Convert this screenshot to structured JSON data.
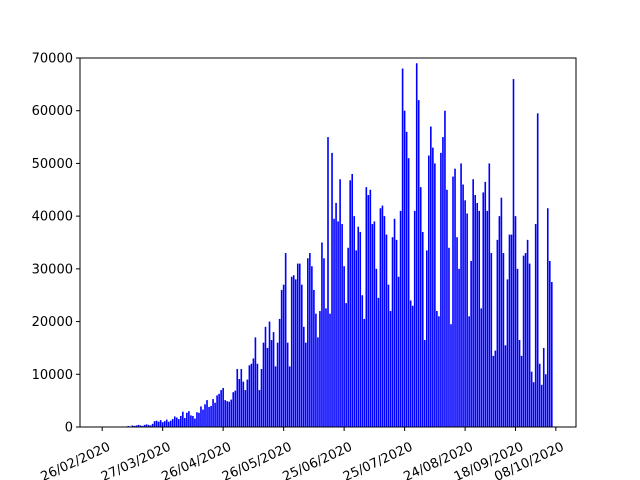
{
  "chart_data": {
    "type": "bar",
    "x": [
      "2020-03-01",
      "2020-03-02",
      "2020-03-03",
      "2020-03-04",
      "2020-03-05",
      "2020-03-06",
      "2020-03-07",
      "2020-03-08",
      "2020-03-09",
      "2020-03-10",
      "2020-03-11",
      "2020-03-12",
      "2020-03-13",
      "2020-03-14",
      "2020-03-15",
      "2020-03-16",
      "2020-03-17",
      "2020-03-18",
      "2020-03-19",
      "2020-03-20",
      "2020-03-21",
      "2020-03-22",
      "2020-03-23",
      "2020-03-24",
      "2020-03-25",
      "2020-03-26",
      "2020-03-27",
      "2020-03-28",
      "2020-03-29",
      "2020-03-30",
      "2020-03-31",
      "2020-04-01",
      "2020-04-02",
      "2020-04-03",
      "2020-04-04",
      "2020-04-05",
      "2020-04-06",
      "2020-04-07",
      "2020-04-08",
      "2020-04-09",
      "2020-04-10",
      "2020-04-11",
      "2020-04-12",
      "2020-04-13",
      "2020-04-14",
      "2020-04-15",
      "2020-04-16",
      "2020-04-17",
      "2020-04-18",
      "2020-04-19",
      "2020-04-20",
      "2020-04-21",
      "2020-04-22",
      "2020-04-23",
      "2020-04-24",
      "2020-04-25",
      "2020-04-26",
      "2020-04-27",
      "2020-04-28",
      "2020-04-29",
      "2020-04-30",
      "2020-05-01",
      "2020-05-02",
      "2020-05-03",
      "2020-05-04",
      "2020-05-05",
      "2020-05-06",
      "2020-05-07",
      "2020-05-08",
      "2020-05-09",
      "2020-05-10",
      "2020-05-11",
      "2020-05-12",
      "2020-05-13",
      "2020-05-14",
      "2020-05-15",
      "2020-05-16",
      "2020-05-17",
      "2020-05-18",
      "2020-05-19",
      "2020-05-20",
      "2020-05-21",
      "2020-05-22",
      "2020-05-23",
      "2020-05-24",
      "2020-05-25",
      "2020-05-26",
      "2020-05-27",
      "2020-05-28",
      "2020-05-29",
      "2020-05-30",
      "2020-05-31",
      "2020-06-01",
      "2020-06-02",
      "2020-06-03",
      "2020-06-04",
      "2020-06-05",
      "2020-06-06",
      "2020-06-07",
      "2020-06-08",
      "2020-06-09",
      "2020-06-10",
      "2020-06-11",
      "2020-06-12",
      "2020-06-13",
      "2020-06-14",
      "2020-06-15",
      "2020-06-16",
      "2020-06-17",
      "2020-06-18",
      "2020-06-19",
      "2020-06-20",
      "2020-06-21",
      "2020-06-22",
      "2020-06-23",
      "2020-06-24",
      "2020-06-25",
      "2020-06-26",
      "2020-06-27",
      "2020-06-28",
      "2020-06-29",
      "2020-06-30",
      "2020-07-01",
      "2020-07-02",
      "2020-07-03",
      "2020-07-04",
      "2020-07-05",
      "2020-07-06",
      "2020-07-07",
      "2020-07-08",
      "2020-07-09",
      "2020-07-10",
      "2020-07-11",
      "2020-07-12",
      "2020-07-13",
      "2020-07-14",
      "2020-07-15",
      "2020-07-16",
      "2020-07-17",
      "2020-07-18",
      "2020-07-19",
      "2020-07-20",
      "2020-07-21",
      "2020-07-22",
      "2020-07-23",
      "2020-07-24",
      "2020-07-25",
      "2020-07-26",
      "2020-07-27",
      "2020-07-28",
      "2020-07-29",
      "2020-07-30",
      "2020-07-31",
      "2020-08-01",
      "2020-08-02",
      "2020-08-03",
      "2020-08-04",
      "2020-08-05",
      "2020-08-06",
      "2020-08-07",
      "2020-08-08",
      "2020-08-09",
      "2020-08-10",
      "2020-08-11",
      "2020-08-12",
      "2020-08-13",
      "2020-08-14",
      "2020-08-15",
      "2020-08-16",
      "2020-08-17",
      "2020-08-18",
      "2020-08-19",
      "2020-08-20",
      "2020-08-21",
      "2020-08-22",
      "2020-08-23",
      "2020-08-24",
      "2020-08-25",
      "2020-08-26",
      "2020-08-27",
      "2020-08-28",
      "2020-08-29",
      "2020-08-30",
      "2020-08-31",
      "2020-09-01",
      "2020-09-02",
      "2020-09-03",
      "2020-09-04",
      "2020-09-05",
      "2020-09-06",
      "2020-09-07",
      "2020-09-08",
      "2020-09-09",
      "2020-09-10",
      "2020-09-11",
      "2020-09-12",
      "2020-09-13",
      "2020-09-14",
      "2020-09-15",
      "2020-09-16",
      "2020-09-17",
      "2020-09-18",
      "2020-09-19",
      "2020-09-20",
      "2020-09-21",
      "2020-09-22",
      "2020-09-23",
      "2020-09-24",
      "2020-09-25",
      "2020-09-26",
      "2020-09-27",
      "2020-09-28",
      "2020-09-29",
      "2020-09-30",
      "2020-10-01",
      "2020-10-02",
      "2020-10-03",
      "2020-10-04",
      "2020-10-05",
      "2020-10-06"
    ],
    "values": [
      0,
      0,
      0,
      0,
      0,
      0,
      0,
      0,
      100,
      200,
      100,
      300,
      200,
      300,
      400,
      300,
      200,
      400,
      500,
      400,
      300,
      600,
      1100,
      1200,
      1000,
      1300,
      900,
      1100,
      1400,
      1000,
      1200,
      1500,
      2000,
      1800,
      1500,
      2100,
      2900,
      1700,
      2700,
      3000,
      2200,
      2100,
      1600,
      2800,
      2700,
      3900,
      3300,
      4300,
      5100,
      3800,
      4000,
      5300,
      4600,
      6000,
      6300,
      7000,
      7400,
      5100,
      4900,
      4800,
      5200,
      6600,
      6900,
      11000,
      9100,
      11000,
      8600,
      7000,
      9000,
      11700,
      12000,
      13000,
      17000,
      12000,
      7000,
      11000,
      16000,
      19000,
      15000,
      20000,
      16500,
      18000,
      11500,
      16000,
      20500,
      26000,
      27000,
      33000,
      16000,
      11500,
      28500,
      28800,
      28000,
      31000,
      31000,
      27000,
      19000,
      16000,
      32000,
      33000,
      30500,
      26000,
      21500,
      17000,
      22000,
      35000,
      32000,
      22500,
      55000,
      21500,
      52000,
      39500,
      42500,
      39000,
      47000,
      38500,
      30500,
      23500,
      34000,
      46800,
      48000,
      40000,
      33500,
      38000,
      37000,
      25000,
      20500,
      45500,
      44000,
      45000,
      38500,
      39000,
      30000,
      24500,
      41500,
      42000,
      40000,
      36500,
      27000,
      22000,
      36000,
      39500,
      35500,
      28500,
      41000,
      68000,
      60000,
      56000,
      51000,
      24000,
      23000,
      41000,
      69000,
      62000,
      45500,
      37000,
      16500,
      33500,
      51500,
      57000,
      53000,
      50000,
      22000,
      21000,
      52000,
      55000,
      60000,
      45000,
      34000,
      19500,
      47500,
      49000,
      36000,
      30000,
      50000,
      46000,
      43000,
      40500,
      21000,
      31500,
      47000,
      44000,
      42500,
      41000,
      22500,
      44500,
      46500,
      41000,
      50000,
      33000,
      13500,
      14500,
      35500,
      40000,
      43500,
      33000,
      15500,
      28000,
      36500,
      36500,
      66000,
      40000,
      30000,
      16500,
      13500,
      32500,
      33000,
      35500,
      31000,
      10500,
      8500,
      38500,
      59500,
      12000,
      8000,
      15000,
      10000,
      41500,
      31500,
      27500
    ],
    "color": "#0000ff",
    "xlim": [
      "2020-02-15",
      "2020-10-18"
    ],
    "xticks": [
      {
        "value": "2020-02-26",
        "label": "26/02/2020"
      },
      {
        "value": "2020-03-27",
        "label": "27/03/2020"
      },
      {
        "value": "2020-04-26",
        "label": "26/04/2020"
      },
      {
        "value": "2020-05-26",
        "label": "26/05/2020"
      },
      {
        "value": "2020-06-25",
        "label": "25/06/2020"
      },
      {
        "value": "2020-07-25",
        "label": "25/07/2020"
      },
      {
        "value": "2020-08-24",
        "label": "24/08/2020"
      },
      {
        "value": "2020-09-18",
        "label": "18/09/2020"
      },
      {
        "value": "2020-10-08",
        "label": "08/10/2020"
      }
    ],
    "ylim": [
      0,
      70000
    ],
    "yticks": [
      0,
      10000,
      20000,
      30000,
      40000,
      50000,
      60000,
      70000
    ]
  }
}
